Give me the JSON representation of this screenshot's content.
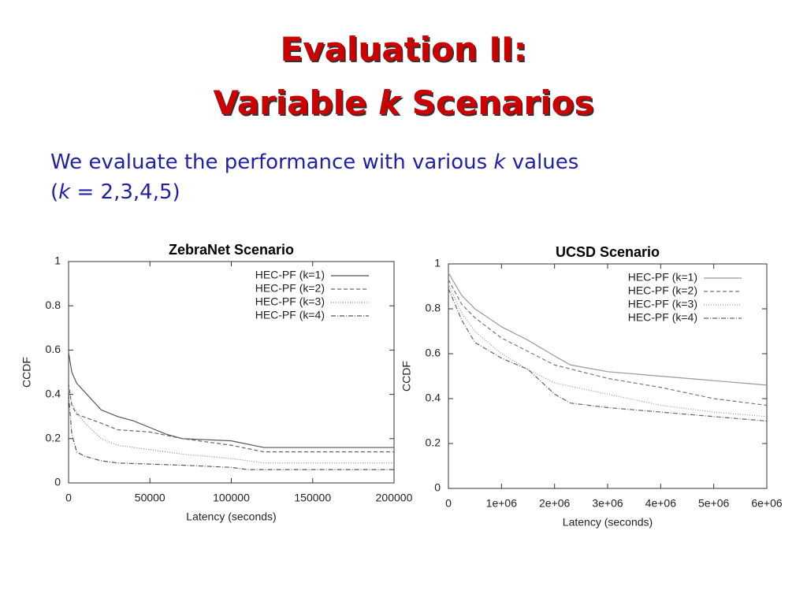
{
  "title": {
    "line1": "Evaluation II:",
    "line2": [
      "Variable",
      "k",
      "Scenarios"
    ]
  },
  "body": {
    "line1": [
      "We evaluate the performance with various",
      "k",
      "values"
    ],
    "line2": [
      "(",
      "k",
      "= 2,3,4,5)"
    ]
  },
  "chart_data": [
    {
      "type": "line",
      "title": "ZebraNet Scenario",
      "xlabel": "Latency (seconds)",
      "ylabel": "CCDF",
      "xlim": [
        0,
        200000
      ],
      "ylim": [
        0,
        1
      ],
      "xticks": [
        0,
        50000,
        100000,
        150000,
        200000
      ],
      "yticks": [
        0,
        0.2,
        0.4,
        0.6,
        0.8,
        1
      ],
      "legend": "upper right",
      "series": [
        {
          "name": "HEC-PF (k=1)",
          "color": "#555555",
          "dash": "none",
          "x": [
            0,
            2000,
            5000,
            10000,
            15000,
            20000,
            30000,
            40000,
            50000,
            60000,
            70000,
            100000,
            120000,
            200000
          ],
          "values": [
            0.59,
            0.5,
            0.45,
            0.41,
            0.37,
            0.33,
            0.3,
            0.28,
            0.25,
            0.22,
            0.2,
            0.19,
            0.16,
            0.16
          ]
        },
        {
          "name": "HEC-PF (k=2)",
          "color": "#666666",
          "dash": "5,3",
          "x": [
            0,
            2000,
            5000,
            20000,
            30000,
            50000,
            70000,
            100000,
            120000,
            200000
          ],
          "values": [
            0.45,
            0.35,
            0.31,
            0.27,
            0.24,
            0.23,
            0.2,
            0.17,
            0.14,
            0.14
          ]
        },
        {
          "name": "HEC-PF (k=3)",
          "color": "#888888",
          "dash": "1,2",
          "x": [
            0,
            2000,
            5000,
            10000,
            20000,
            30000,
            50000,
            70000,
            100000,
            120000,
            200000
          ],
          "values": [
            0.42,
            0.36,
            0.32,
            0.27,
            0.2,
            0.17,
            0.15,
            0.13,
            0.11,
            0.09,
            0.09
          ]
        },
        {
          "name": "HEC-PF (k=4)",
          "color": "#555555",
          "dash": "6,2,1,2",
          "x": [
            0,
            2000,
            5000,
            10000,
            20000,
            30000,
            70000,
            100000,
            110000,
            200000
          ],
          "values": [
            0.4,
            0.22,
            0.14,
            0.12,
            0.1,
            0.09,
            0.08,
            0.07,
            0.06,
            0.06
          ]
        }
      ]
    },
    {
      "type": "line",
      "title": "UCSD Scenario",
      "xlabel": "Latency (seconds)",
      "ylabel": "CCDF",
      "xlim": [
        0,
        6000000
      ],
      "ylim": [
        0,
        1
      ],
      "xticks": [
        0,
        {
          "value": 1000000,
          "label": "1e+06"
        },
        {
          "value": 2000000,
          "label": "2e+06"
        },
        {
          "value": 3000000,
          "label": "3e+06"
        },
        {
          "value": 4000000,
          "label": "4e+06"
        },
        {
          "value": 5000000,
          "label": "5e+06"
        },
        {
          "value": 6000000,
          "label": "6e+06"
        }
      ],
      "yticks": [
        0,
        0.2,
        0.4,
        0.6,
        0.8,
        1
      ],
      "legend": "upper right",
      "series": [
        {
          "name": "HEC-PF (k=1)",
          "color": "#999999",
          "dash": "none",
          "x": [
            0,
            250000,
            500000,
            1000000,
            1500000,
            2000000,
            2300000,
            3000000,
            4000000,
            5000000,
            6000000
          ],
          "values": [
            0.96,
            0.86,
            0.8,
            0.72,
            0.66,
            0.59,
            0.55,
            0.52,
            0.5,
            0.48,
            0.46
          ]
        },
        {
          "name": "HEC-PF (k=2)",
          "color": "#777777",
          "dash": "5,3",
          "x": [
            0,
            250000,
            500000,
            1000000,
            1500000,
            2000000,
            3000000,
            4000000,
            5000000,
            6000000
          ],
          "values": [
            0.93,
            0.82,
            0.76,
            0.67,
            0.61,
            0.55,
            0.49,
            0.45,
            0.4,
            0.37
          ]
        },
        {
          "name": "HEC-PF (k=3)",
          "color": "#999999",
          "dash": "1,2",
          "x": [
            0,
            250000,
            500000,
            1000000,
            1500000,
            2000000,
            3000000,
            4000000,
            5000000,
            6000000
          ],
          "values": [
            0.91,
            0.78,
            0.7,
            0.6,
            0.53,
            0.47,
            0.42,
            0.37,
            0.34,
            0.32
          ]
        },
        {
          "name": "HEC-PF (k=4)",
          "color": "#666666",
          "dash": "6,2,1,2",
          "x": [
            0,
            250000,
            500000,
            1000000,
            1500000,
            2000000,
            2300000,
            3000000,
            4000000,
            5000000,
            6000000
          ],
          "values": [
            0.89,
            0.75,
            0.65,
            0.58,
            0.53,
            0.42,
            0.38,
            0.36,
            0.34,
            0.32,
            0.3
          ]
        }
      ]
    }
  ]
}
